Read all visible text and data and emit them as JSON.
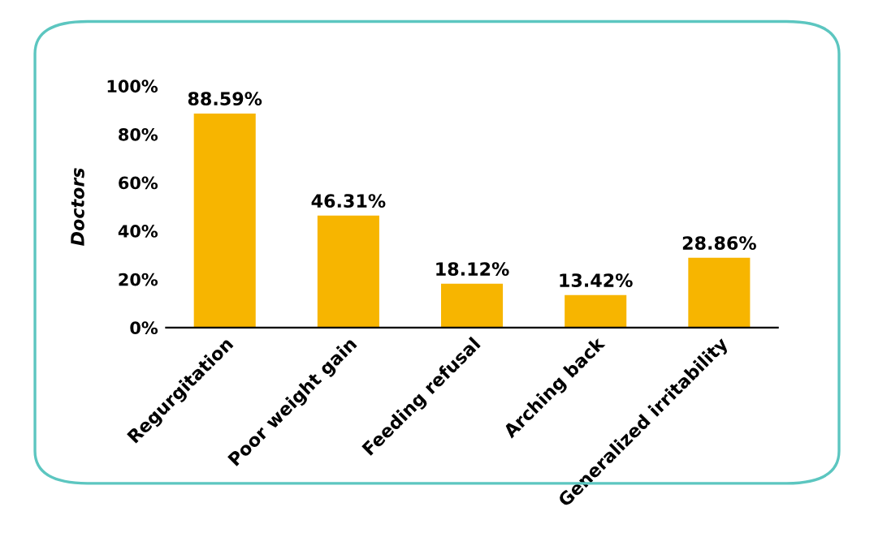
{
  "chart_data": {
    "type": "bar",
    "ylabel": "Doctors",
    "categories": [
      "Regurgitation",
      "Poor weight gain",
      "Feeding refusal",
      "Arching back",
      "Generalized irritability"
    ],
    "values": [
      88.59,
      46.31,
      18.12,
      13.42,
      28.86
    ],
    "value_labels": [
      "88.59%",
      "46.31%",
      "18.12%",
      "13.42%",
      "28.86%"
    ],
    "color": "#f7b500",
    "ylim": [
      0,
      100
    ],
    "yticks": [
      {
        "value": 0,
        "label": "0%"
      },
      {
        "value": 20,
        "label": "20%"
      },
      {
        "value": 40,
        "label": "40%"
      },
      {
        "value": 60,
        "label": "60%"
      },
      {
        "value": 80,
        "label": "80%"
      },
      {
        "value": 100,
        "label": "100%"
      }
    ],
    "grid": false,
    "legend": false
  }
}
